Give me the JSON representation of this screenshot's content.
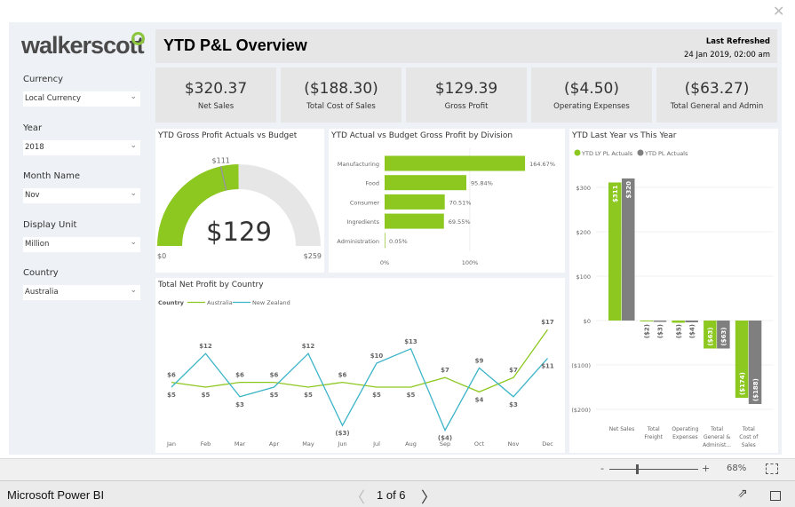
{
  "logo": "walkerscott",
  "slicers": [
    {
      "label": "Currency",
      "value": "Local Currency"
    },
    {
      "label": "Year",
      "value": "2018"
    },
    {
      "label": "Month Name",
      "value": "Nov"
    },
    {
      "label": "Display Unit",
      "value": "Million"
    },
    {
      "label": "Country",
      "value": "Australia"
    }
  ],
  "header": {
    "title": "YTD P&L Overview",
    "refreshed_label": "Last Refreshed",
    "refreshed_value": "24 Jan 2019, 02:00 am"
  },
  "kpis": [
    {
      "value": "$320.37",
      "label": "Net Sales"
    },
    {
      "value": "($188.30)",
      "label": "Total Cost of Sales"
    },
    {
      "value": "$129.39",
      "label": "Gross Profit"
    },
    {
      "value": "($4.50)",
      "label": "Operating Expenses"
    },
    {
      "value": "($63.27)",
      "label": "Total General and Admin"
    }
  ],
  "colors": {
    "green": "#8cc820",
    "gray": "#7f7f7f",
    "teal": "#3cb4c8",
    "track": "#e6e6e6"
  },
  "chart_data": [
    {
      "type": "gauge",
      "title": "YTD Gross Profit Actuals vs Budget",
      "value": 129,
      "value_label": "$129",
      "target": 111,
      "target_label": "$111",
      "min": 0,
      "min_label": "$0",
      "max": 259,
      "max_label": "$259"
    },
    {
      "type": "bar",
      "orientation": "horizontal",
      "title": "YTD Actual vs Budget Gross Profit by Division",
      "categories": [
        "Manufacturing",
        "Food",
        "Consumer",
        "Ingredients",
        "Administration"
      ],
      "values": [
        164.67,
        95.84,
        70.51,
        69.55,
        0.05
      ],
      "data_labels": [
        "164.67%",
        "95.84%",
        "70.51%",
        "69.55%",
        "0.05%"
      ],
      "xticks": [
        "0%",
        "100%"
      ]
    },
    {
      "type": "line",
      "title": "Total Net Profit by Country",
      "legend_title": "Country",
      "categories": [
        "Jan",
        "Feb",
        "Mar",
        "Apr",
        "May",
        "Jun",
        "Jul",
        "Aug",
        "Sep",
        "Oct",
        "Nov",
        "Dec"
      ],
      "series": [
        {
          "name": "Australia",
          "values": [
            6,
            5,
            6,
            6,
            5,
            6,
            5,
            5,
            7,
            4,
            7,
            17
          ]
        },
        {
          "name": "New Zealand",
          "values": [
            5,
            12,
            3,
            5,
            12,
            -3,
            10,
            13,
            -4,
            9,
            3,
            11
          ]
        }
      ]
    },
    {
      "type": "bar",
      "title": "YTD Last Year vs This Year",
      "categories": [
        "Net Sales",
        "Total Freight",
        "Operating Expenses",
        "Total General & Administ...",
        "Total Cost of Sales"
      ],
      "series": [
        {
          "name": "YTD LY PL Actuals",
          "values": [
            311,
            -2,
            -5,
            -63,
            -174
          ]
        },
        {
          "name": "YTD PL Actuals",
          "values": [
            320,
            -3,
            -4,
            -63,
            -188
          ]
        }
      ],
      "yticks": [
        "$300",
        "$200",
        "$100",
        "$0",
        "($100)",
        "($200)"
      ],
      "ylim": [
        -200,
        300
      ],
      "legend": "top-left"
    }
  ],
  "footer": {
    "zoom": "68%",
    "zoom_minus": "-",
    "zoom_plus": "+",
    "app": "Microsoft Power BI",
    "page": "1 of 6"
  }
}
